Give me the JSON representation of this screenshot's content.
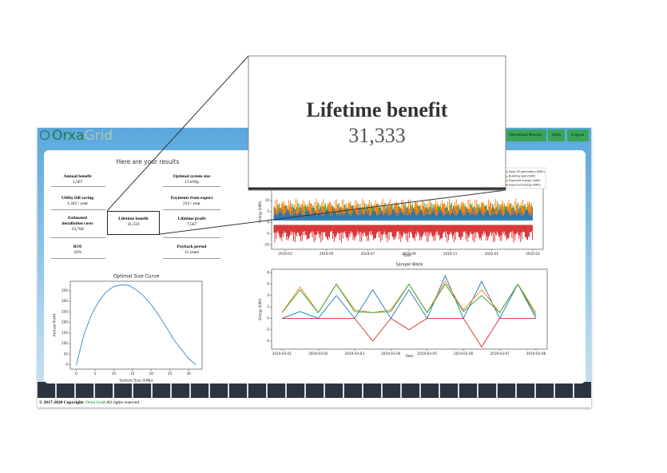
{
  "header": {
    "brand": [
      "Orxa",
      "Grid"
    ],
    "buttons": [
      "Download Results",
      "Help",
      "Logout"
    ]
  },
  "results": {
    "title": "Here are your results",
    "metrics": [
      {
        "label": "Annual benefit",
        "value": "1,567"
      },
      {
        "label": "Optimal system size",
        "value": "13 kWp"
      },
      {
        "label": "Utility bill saving",
        "value": "1,343 / year"
      },
      {
        "label": "Payments from export",
        "value": "223 / year"
      },
      {
        "label": "Estimated installation costs",
        "value": "23,766"
      },
      {
        "label": "Lifetime benefit",
        "value": "31,333"
      },
      {
        "label": "Lifetime profit",
        "value": "7,567"
      },
      {
        "label": "ROI",
        "value": "32%"
      },
      {
        "label": "Payback period",
        "value": "15 years"
      }
    ]
  },
  "chart_data": [
    {
      "type": "line",
      "title": "Optimal Size Curve",
      "x_label": "System Size (kWp)",
      "y_label": "Annual Profit",
      "x": [
        0,
        2,
        4,
        6,
        8,
        10,
        12,
        14,
        16,
        18,
        20,
        22,
        24,
        26,
        28,
        30,
        32
      ],
      "series": [
        {
          "color": "#4a90c8",
          "values": [
            0,
            140,
            235,
            300,
            345,
            370,
            378,
            375,
            355,
            325,
            285,
            235,
            180,
            120,
            75,
            30,
            0
          ]
        }
      ],
      "xlim": [
        -1.6,
        33.6
      ],
      "ylim": [
        -20,
        395
      ],
      "xticks": [
        0,
        5,
        10,
        15,
        20,
        25,
        30
      ],
      "yticks": [
        0,
        50,
        100,
        150,
        200,
        250,
        300,
        350
      ]
    },
    {
      "type": "noise",
      "x_label": "Date",
      "y_label": "Energy (kWh)",
      "categories": [
        "2019-03",
        "2019-05",
        "2019-07",
        "2019-09",
        "2019-11",
        "2020-01",
        "2020-03"
      ],
      "series": [
        {
          "name": "Solar PV generation (kWh)",
          "color": "#1f77b4"
        },
        {
          "name": "Building load (kWh)",
          "color": "#ff7f0e"
        },
        {
          "name": "Exported energy (kWh)",
          "color": "#2ca02c"
        },
        {
          "name": "Expected energy (kWh)",
          "color": "#d62728"
        }
      ],
      "ylim": [
        -12,
        23
      ],
      "yticks": [
        -10,
        -5,
        0,
        5,
        10
      ]
    },
    {
      "type": "week",
      "title": "Sample Week",
      "x_label": "Date",
      "y_label": "Energy (kWh)",
      "xticks": [
        "2019-03-01",
        "2019-03-02",
        "2019-03-03",
        "2019-03-04",
        "2019-03-05",
        "2019-03-06",
        "2019-03-07",
        "2019-03-08"
      ],
      "series": [
        {
          "color": "#1f77b4",
          "values": [
            0,
            1.2,
            0,
            4,
            0,
            5,
            0,
            5,
            0,
            7.5,
            0,
            6.5,
            0,
            6,
            0
          ]
        },
        {
          "color": "#ff7f0e",
          "values": [
            1,
            5.5,
            1,
            6,
            1.5,
            1,
            1.5,
            6,
            1,
            6.5,
            1.5,
            5,
            1,
            6,
            1
          ]
        },
        {
          "color": "#2ca02c",
          "values": [
            1,
            5,
            1,
            6,
            1.2,
            1,
            1.2,
            6,
            1,
            6,
            1.2,
            4,
            1,
            6,
            0.5
          ]
        },
        {
          "color": "#d62728",
          "values": [
            0,
            0,
            0,
            0,
            0,
            -4,
            0,
            -2,
            0,
            0,
            0,
            -5,
            0,
            0,
            0
          ]
        }
      ],
      "ylim": [
        -5.4,
        8.6
      ],
      "yticks": [
        -4,
        -2,
        0,
        2,
        4,
        6,
        8
      ]
    }
  ],
  "footer": {
    "copyright": "© 2017-2020 Copyright:",
    "brand": "Orxa Grid",
    "rights": "All rights reserved."
  }
}
